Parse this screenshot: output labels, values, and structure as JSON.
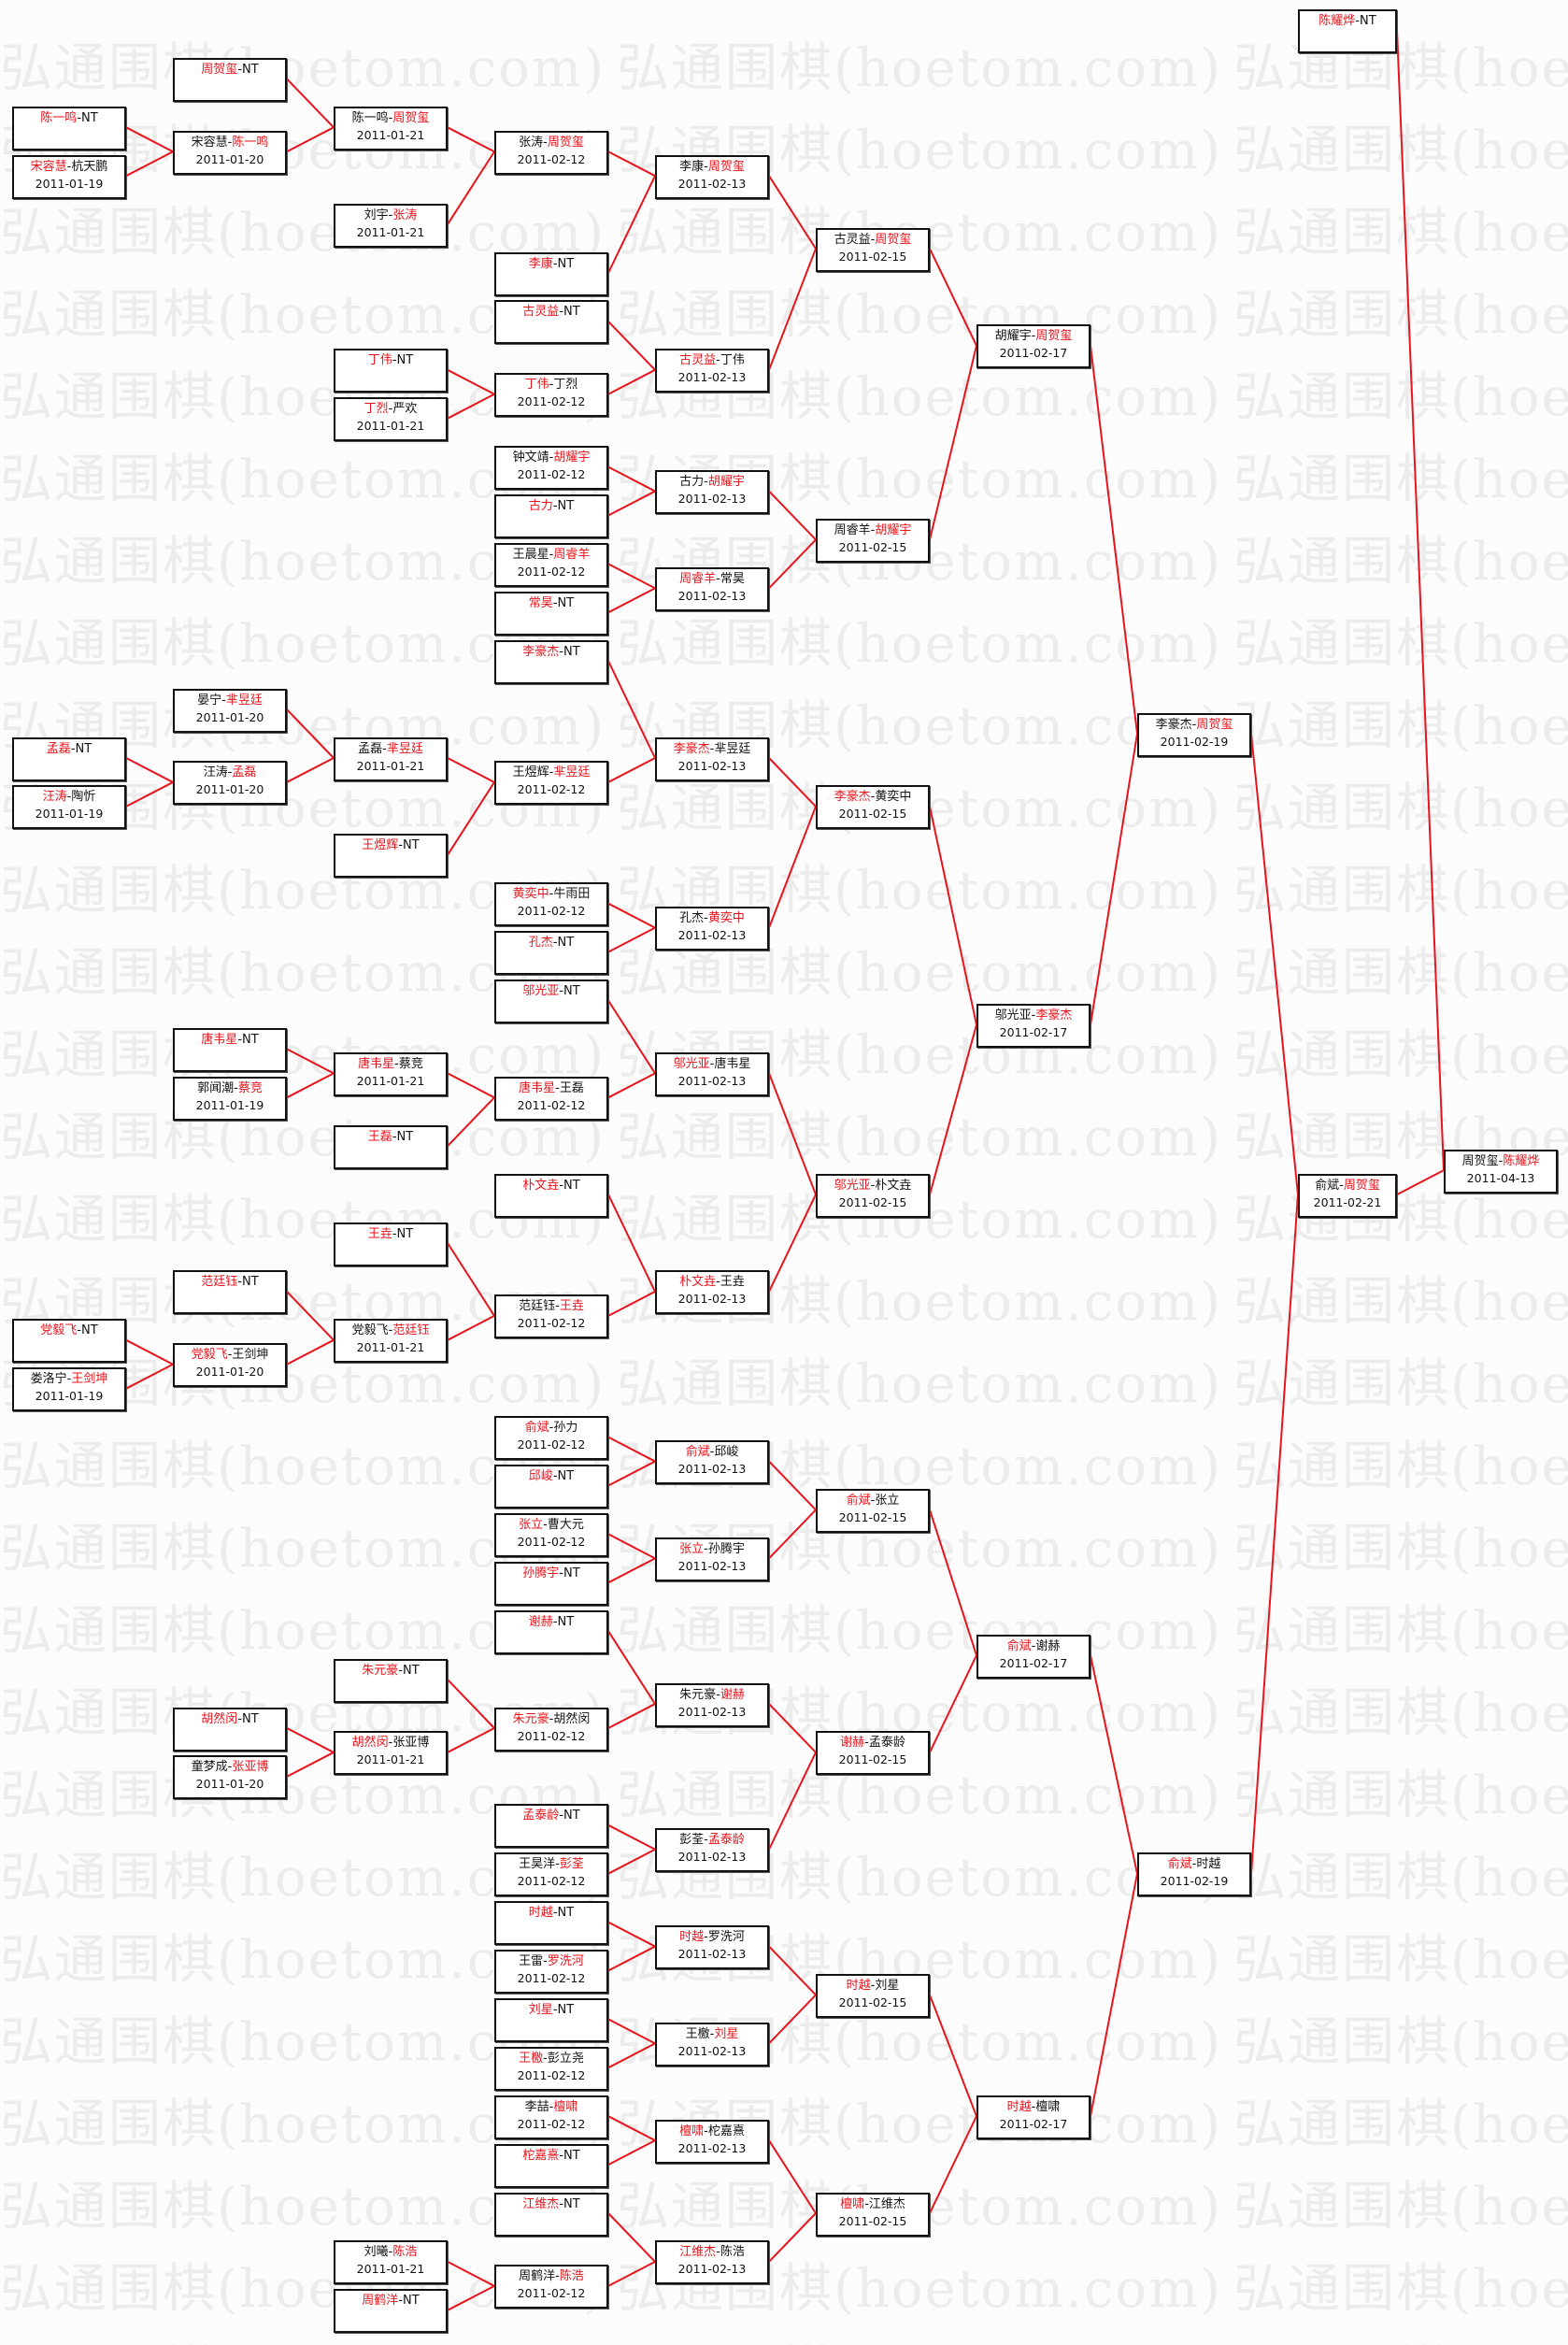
{
  "watermark": "弘通围棋(hoetom.com)",
  "colors": {
    "winner_text": "#e8141c",
    "connector": "#e8141c",
    "border": "#111111"
  },
  "bracket": {
    "columns": [
      [
        {
          "p": [
            "陈一鸣",
            "NT"
          ],
          "w": 0,
          "date": ""
        },
        {
          "p": [
            "宋容慧",
            "杭天鹏"
          ],
          "w": 0,
          "date": "2011-01-19"
        },
        {
          "p": [
            "孟磊",
            "NT"
          ],
          "w": 0,
          "date": ""
        },
        {
          "p": [
            "汪涛",
            "陶忻"
          ],
          "w": 0,
          "date": "2011-01-19"
        },
        {
          "p": [
            "党毅飞",
            "NT"
          ],
          "w": 0,
          "date": ""
        },
        {
          "p": [
            "娄洛宁",
            "王剑坤"
          ],
          "w": 1,
          "date": "2011-01-19"
        }
      ],
      [
        {
          "p": [
            "周贺玺",
            "NT"
          ],
          "w": 0,
          "date": ""
        },
        {
          "p": [
            "宋容慧",
            "陈一鸣"
          ],
          "w": 1,
          "date": "2011-01-20"
        },
        {
          "p": [
            "晏宁",
            "芈昱廷"
          ],
          "w": 1,
          "date": "2011-01-20"
        },
        {
          "p": [
            "汪涛",
            "孟磊"
          ],
          "w": 1,
          "date": "2011-01-20"
        },
        {
          "p": [
            "唐韦星",
            "NT"
          ],
          "w": 0,
          "date": ""
        },
        {
          "p": [
            "郭闻潮",
            "蔡竞"
          ],
          "w": 1,
          "date": "2011-01-19"
        },
        {
          "p": [
            "范廷钰",
            "NT"
          ],
          "w": 0,
          "date": ""
        },
        {
          "p": [
            "党毅飞",
            "王剑坤"
          ],
          "w": 0,
          "date": "2011-01-20"
        },
        {
          "p": [
            "胡然闵",
            "NT"
          ],
          "w": 0,
          "date": ""
        },
        {
          "p": [
            "童梦成",
            "张亚博"
          ],
          "w": 1,
          "date": "2011-01-20"
        }
      ],
      [
        {
          "p": [
            "陈一鸣",
            "周贺玺"
          ],
          "w": 1,
          "date": "2011-01-21"
        },
        {
          "p": [
            "刘宇",
            "张涛"
          ],
          "w": 1,
          "date": "2011-01-21"
        },
        {
          "p": [
            "丁伟",
            "NT"
          ],
          "w": 0,
          "date": ""
        },
        {
          "p": [
            "丁烈",
            "严欢"
          ],
          "w": 0,
          "date": "2011-01-21"
        },
        {
          "p": [
            "孟磊",
            "芈昱廷"
          ],
          "w": 1,
          "date": "2011-01-21"
        },
        {
          "p": [
            "王煜辉",
            "NT"
          ],
          "w": 0,
          "date": ""
        },
        {
          "p": [
            "唐韦星",
            "蔡竞"
          ],
          "w": 0,
          "date": "2011-01-21"
        },
        {
          "p": [
            "王磊",
            "NT"
          ],
          "w": 0,
          "date": ""
        },
        {
          "p": [
            "王垚",
            "NT"
          ],
          "w": 0,
          "date": ""
        },
        {
          "p": [
            "党毅飞",
            "范廷钰"
          ],
          "w": 1,
          "date": "2011-01-21"
        },
        {
          "p": [
            "朱元豪",
            "NT"
          ],
          "w": 0,
          "date": ""
        },
        {
          "p": [
            "胡然闵",
            "张亚博"
          ],
          "w": 0,
          "date": "2011-01-21"
        },
        {
          "p": [
            "刘曦",
            "陈浩"
          ],
          "w": 1,
          "date": "2011-01-21"
        },
        {
          "p": [
            "周鹤洋",
            "NT"
          ],
          "w": 0,
          "date": ""
        }
      ],
      [
        {
          "p": [
            "张涛",
            "周贺玺"
          ],
          "w": 1,
          "date": "2011-02-12"
        },
        {
          "p": [
            "李康",
            "NT"
          ],
          "w": 0,
          "date": ""
        },
        {
          "p": [
            "古灵益",
            "NT"
          ],
          "w": 0,
          "date": ""
        },
        {
          "p": [
            "丁伟",
            "丁烈"
          ],
          "w": 0,
          "date": "2011-02-12"
        },
        {
          "p": [
            "钟文靖",
            "胡耀宇"
          ],
          "w": 1,
          "date": "2011-02-12"
        },
        {
          "p": [
            "古力",
            "NT"
          ],
          "w": 0,
          "date": ""
        },
        {
          "p": [
            "王晨星",
            "周睿羊"
          ],
          "w": 1,
          "date": "2011-02-12"
        },
        {
          "p": [
            "常昊",
            "NT"
          ],
          "w": 0,
          "date": ""
        },
        {
          "p": [
            "李豪杰",
            "NT"
          ],
          "w": 0,
          "date": ""
        },
        {
          "p": [
            "王煜辉",
            "芈昱廷"
          ],
          "w": 1,
          "date": "2011-02-12"
        },
        {
          "p": [
            "黄奕中",
            "牛雨田"
          ],
          "w": 0,
          "date": "2011-02-12"
        },
        {
          "p": [
            "孔杰",
            "NT"
          ],
          "w": 0,
          "date": ""
        },
        {
          "p": [
            "邬光亚",
            "NT"
          ],
          "w": 0,
          "date": ""
        },
        {
          "p": [
            "唐韦星",
            "王磊"
          ],
          "w": 0,
          "date": "2011-02-12"
        },
        {
          "p": [
            "朴文垚",
            "NT"
          ],
          "w": 0,
          "date": ""
        },
        {
          "p": [
            "范廷钰",
            "王垚"
          ],
          "w": 1,
          "date": "2011-02-12"
        },
        {
          "p": [
            "俞斌",
            "孙力"
          ],
          "w": 0,
          "date": "2011-02-12"
        },
        {
          "p": [
            "邱峻",
            "NT"
          ],
          "w": 0,
          "date": ""
        },
        {
          "p": [
            "张立",
            "曹大元"
          ],
          "w": 0,
          "date": "2011-02-12"
        },
        {
          "p": [
            "孙腾宇",
            "NT"
          ],
          "w": 0,
          "date": ""
        },
        {
          "p": [
            "谢赫",
            "NT"
          ],
          "w": 0,
          "date": ""
        },
        {
          "p": [
            "朱元豪",
            "胡然闵"
          ],
          "w": 0,
          "date": "2011-02-12"
        },
        {
          "p": [
            "孟泰龄",
            "NT"
          ],
          "w": 0,
          "date": ""
        },
        {
          "p": [
            "王昊洋",
            "彭荃"
          ],
          "w": 1,
          "date": "2011-02-12"
        },
        {
          "p": [
            "时越",
            "NT"
          ],
          "w": 0,
          "date": ""
        },
        {
          "p": [
            "王雷",
            "罗洗河"
          ],
          "w": 1,
          "date": "2011-02-12"
        },
        {
          "p": [
            "刘星",
            "NT"
          ],
          "w": 0,
          "date": ""
        },
        {
          "p": [
            "王檄",
            "彭立尧"
          ],
          "w": 0,
          "date": "2011-02-12"
        },
        {
          "p": [
            "李喆",
            "檀啸"
          ],
          "w": 1,
          "date": "2011-02-12"
        },
        {
          "p": [
            "柁嘉熹",
            "NT"
          ],
          "w": 0,
          "date": ""
        },
        {
          "p": [
            "江维杰",
            "NT"
          ],
          "w": 0,
          "date": ""
        },
        {
          "p": [
            "周鹤洋",
            "陈浩"
          ],
          "w": 1,
          "date": "2011-02-12"
        }
      ],
      [
        {
          "p": [
            "李康",
            "周贺玺"
          ],
          "w": 1,
          "date": "2011-02-13"
        },
        {
          "p": [
            "古灵益",
            "丁伟"
          ],
          "w": 0,
          "date": "2011-02-13"
        },
        {
          "p": [
            "古力",
            "胡耀宇"
          ],
          "w": 1,
          "date": "2011-02-13"
        },
        {
          "p": [
            "周睿羊",
            "常昊"
          ],
          "w": 0,
          "date": "2011-02-13"
        },
        {
          "p": [
            "李豪杰",
            "芈昱廷"
          ],
          "w": 0,
          "date": "2011-02-13"
        },
        {
          "p": [
            "孔杰",
            "黄奕中"
          ],
          "w": 1,
          "date": "2011-02-13"
        },
        {
          "p": [
            "邬光亚",
            "唐韦星"
          ],
          "w": 0,
          "date": "2011-02-13"
        },
        {
          "p": [
            "朴文垚",
            "王垚"
          ],
          "w": 0,
          "date": "2011-02-13"
        },
        {
          "p": [
            "俞斌",
            "邱峻"
          ],
          "w": 0,
          "date": "2011-02-13"
        },
        {
          "p": [
            "张立",
            "孙腾宇"
          ],
          "w": 0,
          "date": "2011-02-13"
        },
        {
          "p": [
            "朱元豪",
            "谢赫"
          ],
          "w": 1,
          "date": "2011-02-13"
        },
        {
          "p": [
            "彭荃",
            "孟泰龄"
          ],
          "w": 1,
          "date": "2011-02-13"
        },
        {
          "p": [
            "时越",
            "罗洗河"
          ],
          "w": 0,
          "date": "2011-02-13"
        },
        {
          "p": [
            "王檄",
            "刘星"
          ],
          "w": 1,
          "date": "2011-02-13"
        },
        {
          "p": [
            "檀啸",
            "柁嘉熹"
          ],
          "w": 0,
          "date": "2011-02-13"
        },
        {
          "p": [
            "江维杰",
            "陈浩"
          ],
          "w": 0,
          "date": "2011-02-13"
        }
      ],
      [
        {
          "p": [
            "古灵益",
            "周贺玺"
          ],
          "w": 1,
          "date": "2011-02-15"
        },
        {
          "p": [
            "周睿羊",
            "胡耀宇"
          ],
          "w": 1,
          "date": "2011-02-15"
        },
        {
          "p": [
            "李豪杰",
            "黄奕中"
          ],
          "w": 0,
          "date": "2011-02-15"
        },
        {
          "p": [
            "邬光亚",
            "朴文垚"
          ],
          "w": 0,
          "date": "2011-02-15"
        },
        {
          "p": [
            "俞斌",
            "张立"
          ],
          "w": 0,
          "date": "2011-02-15"
        },
        {
          "p": [
            "谢赫",
            "孟泰龄"
          ],
          "w": 0,
          "date": "2011-02-15"
        },
        {
          "p": [
            "时越",
            "刘星"
          ],
          "w": 0,
          "date": "2011-02-15"
        },
        {
          "p": [
            "檀啸",
            "江维杰"
          ],
          "w": 0,
          "date": "2011-02-15"
        }
      ],
      [
        {
          "p": [
            "胡耀宇",
            "周贺玺"
          ],
          "w": 1,
          "date": "2011-02-17"
        },
        {
          "p": [
            "邬光亚",
            "李豪杰"
          ],
          "w": 1,
          "date": "2011-02-17"
        },
        {
          "p": [
            "俞斌",
            "谢赫"
          ],
          "w": 0,
          "date": "2011-02-17"
        },
        {
          "p": [
            "时越",
            "檀啸"
          ],
          "w": 0,
          "date": "2011-02-17"
        }
      ],
      [
        {
          "p": [
            "李豪杰",
            "周贺玺"
          ],
          "w": 1,
          "date": "2011-02-19"
        },
        {
          "p": [
            "俞斌",
            "时越"
          ],
          "w": 0,
          "date": "2011-02-19"
        }
      ],
      [
        {
          "p": [
            "陈耀烨",
            "NT"
          ],
          "w": 0,
          "date": ""
        },
        {
          "p": [
            "俞斌",
            "周贺玺"
          ],
          "w": 1,
          "date": "2011-02-21"
        }
      ],
      [
        {
          "p": [
            "周贺玺",
            "陈耀烨"
          ],
          "w": 1,
          "date": "2011-04-13"
        }
      ]
    ]
  }
}
